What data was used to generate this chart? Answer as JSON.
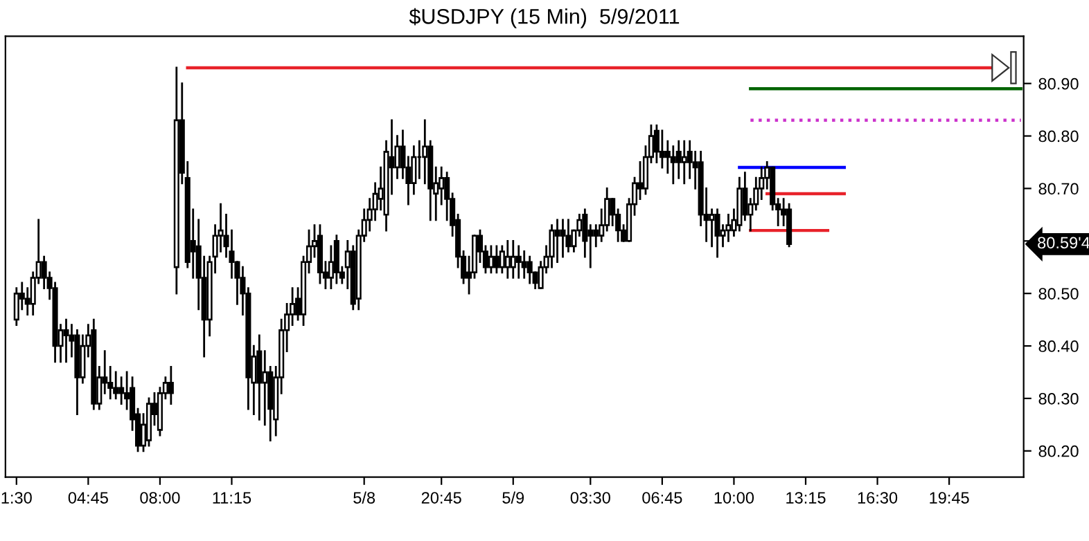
{
  "chart_data": {
    "type": "candlestick",
    "title": "$USDJPY (15 Min)  5/9/2011",
    "categories": [
      "1:30",
      null,
      null,
      null,
      null,
      null,
      null,
      null,
      null,
      null,
      null,
      null,
      null,
      "04:45",
      null,
      null,
      null,
      null,
      null,
      null,
      null,
      null,
      null,
      null,
      null,
      null,
      "08:00",
      null,
      null,
      null,
      null,
      null,
      null,
      null,
      null,
      null,
      null,
      null,
      null,
      "11:15",
      null,
      null,
      null,
      null,
      null,
      null,
      null,
      null,
      null,
      null,
      null,
      null,
      null,
      null,
      null,
      null,
      null,
      null,
      null,
      null,
      null,
      null,
      null,
      "5/8",
      null,
      null,
      null,
      null,
      null,
      null,
      null,
      null,
      null,
      null,
      null,
      null,
      null,
      "20:45",
      null,
      null,
      null,
      null,
      null,
      null,
      null,
      null,
      null,
      null,
      null,
      null,
      "5/9",
      null,
      null,
      null,
      null,
      null,
      null,
      null,
      null,
      null,
      null,
      null,
      null,
      null,
      "03:30",
      null,
      null,
      null,
      null,
      null,
      null,
      null,
      null,
      null,
      null,
      null,
      null,
      "06:45",
      null,
      null,
      null,
      null,
      null,
      null,
      null,
      null,
      null,
      null,
      null,
      null,
      "10:00",
      null,
      null,
      null,
      null,
      null,
      null,
      null,
      null,
      null,
      null,
      null,
      null,
      "13:15",
      null,
      null,
      null,
      null,
      null,
      null,
      null,
      null,
      null,
      null,
      null,
      null,
      "16:30",
      null,
      null,
      null,
      null,
      null,
      null,
      null,
      null,
      null,
      null,
      null,
      null,
      "19:45",
      null,
      null,
      null,
      null,
      null,
      null,
      null,
      null,
      null,
      null,
      null,
      null,
      null
    ],
    "ohlc": [
      [
        80.45,
        80.51,
        80.44,
        80.5
      ],
      [
        80.5,
        80.52,
        80.47,
        80.49
      ],
      [
        80.49,
        80.51,
        80.46,
        80.48
      ],
      [
        80.48,
        80.54,
        80.46,
        80.53
      ],
      [
        80.53,
        80.64,
        80.52,
        80.56
      ],
      [
        80.56,
        80.57,
        80.51,
        80.53
      ],
      [
        80.53,
        80.54,
        80.49,
        80.51
      ],
      [
        80.51,
        80.52,
        80.37,
        80.4
      ],
      [
        80.4,
        80.44,
        80.37,
        80.43
      ],
      [
        80.43,
        80.45,
        80.37,
        80.42
      ],
      [
        80.42,
        80.44,
        80.38,
        80.41
      ],
      [
        80.42,
        80.43,
        80.27,
        80.34
      ],
      [
        80.34,
        80.42,
        80.33,
        80.4
      ],
      [
        80.4,
        80.44,
        80.38,
        80.42
      ],
      [
        80.43,
        80.45,
        80.28,
        80.29
      ],
      [
        80.29,
        80.36,
        80.28,
        80.34
      ],
      [
        80.34,
        80.39,
        80.31,
        80.33
      ],
      [
        80.33,
        80.36,
        80.3,
        80.32
      ],
      [
        80.32,
        80.35,
        80.3,
        80.31
      ],
      [
        80.32,
        80.34,
        80.29,
        80.31
      ],
      [
        80.31,
        80.35,
        80.28,
        80.3
      ],
      [
        80.32,
        80.34,
        80.24,
        80.26
      ],
      [
        80.27,
        80.28,
        80.2,
        80.21
      ],
      [
        80.21,
        80.27,
        80.2,
        80.25
      ],
      [
        80.22,
        80.3,
        80.21,
        80.29
      ],
      [
        80.29,
        80.31,
        80.25,
        80.27
      ],
      [
        80.24,
        80.32,
        80.23,
        80.31
      ],
      [
        80.31,
        80.34,
        80.3,
        80.33
      ],
      [
        80.33,
        80.36,
        80.29,
        80.31
      ],
      [
        80.55,
        80.93,
        80.5,
        80.83
      ],
      [
        80.83,
        80.9,
        80.71,
        80.73
      ],
      [
        80.72,
        80.75,
        80.55,
        80.56
      ],
      [
        80.6,
        80.66,
        80.53,
        80.58
      ],
      [
        80.59,
        80.64,
        80.47,
        80.53
      ],
      [
        80.53,
        80.57,
        80.38,
        80.45
      ],
      [
        80.45,
        80.57,
        80.42,
        80.56
      ],
      [
        80.57,
        80.63,
        80.54,
        80.61
      ],
      [
        80.61,
        80.67,
        80.58,
        80.62
      ],
      [
        80.61,
        80.65,
        80.57,
        80.59
      ],
      [
        80.58,
        80.62,
        80.53,
        80.56
      ],
      [
        80.56,
        80.56,
        80.48,
        80.53
      ],
      [
        80.53,
        80.55,
        80.46,
        80.5
      ],
      [
        80.5,
        80.51,
        80.28,
        80.34
      ],
      [
        80.33,
        80.4,
        80.27,
        80.38
      ],
      [
        80.39,
        80.42,
        80.26,
        80.33
      ],
      [
        80.33,
        80.39,
        80.25,
        80.35
      ],
      [
        80.35,
        80.36,
        80.22,
        80.28
      ],
      [
        80.26,
        80.36,
        80.23,
        80.34
      ],
      [
        80.34,
        80.45,
        80.31,
        80.43
      ],
      [
        80.43,
        80.48,
        80.39,
        80.46
      ],
      [
        80.46,
        80.51,
        80.44,
        80.48
      ],
      [
        80.49,
        80.51,
        80.45,
        80.46
      ],
      [
        80.46,
        80.57,
        80.44,
        80.56
      ],
      [
        80.56,
        80.62,
        80.54,
        80.59
      ],
      [
        80.59,
        80.63,
        80.57,
        80.6
      ],
      [
        80.61,
        80.63,
        80.52,
        80.54
      ],
      [
        80.54,
        80.56,
        80.51,
        80.53
      ],
      [
        80.53,
        80.59,
        80.51,
        80.56
      ],
      [
        80.6,
        80.61,
        80.52,
        80.54
      ],
      [
        80.54,
        80.55,
        80.52,
        80.53
      ],
      [
        80.55,
        80.6,
        80.51,
        80.58
      ],
      [
        80.58,
        80.59,
        80.47,
        80.48
      ],
      [
        80.49,
        80.62,
        80.47,
        80.61
      ],
      [
        80.61,
        80.66,
        80.6,
        80.64
      ],
      [
        80.64,
        80.68,
        80.62,
        80.66
      ],
      [
        80.66,
        80.71,
        80.64,
        80.69
      ],
      [
        80.68,
        80.74,
        80.66,
        80.7
      ],
      [
        80.65,
        80.79,
        80.62,
        80.77
      ],
      [
        80.76,
        80.83,
        80.69,
        80.74
      ],
      [
        80.74,
        80.8,
        80.72,
        80.78
      ],
      [
        80.78,
        80.81,
        80.72,
        80.74
      ],
      [
        80.74,
        80.76,
        80.67,
        80.71
      ],
      [
        80.71,
        80.78,
        80.69,
        80.76
      ],
      [
        80.76,
        80.79,
        80.72,
        80.76
      ],
      [
        80.76,
        80.83,
        80.71,
        80.78
      ],
      [
        80.78,
        80.79,
        80.64,
        80.7
      ],
      [
        80.69,
        80.74,
        80.64,
        80.71
      ],
      [
        80.7,
        80.74,
        80.67,
        80.72
      ],
      [
        80.72,
        80.73,
        80.64,
        80.68
      ],
      [
        80.68,
        80.69,
        80.61,
        80.63
      ],
      [
        80.64,
        80.65,
        80.55,
        80.57
      ],
      [
        80.57,
        80.58,
        80.52,
        80.53
      ],
      [
        80.54,
        80.57,
        80.5,
        80.53
      ],
      [
        80.54,
        80.61,
        80.53,
        80.61
      ],
      [
        80.61,
        80.62,
        80.56,
        80.58
      ],
      [
        80.58,
        80.59,
        80.54,
        80.55
      ],
      [
        80.55,
        80.59,
        80.54,
        80.57
      ],
      [
        80.57,
        80.59,
        80.54,
        80.55
      ],
      [
        80.55,
        80.59,
        80.54,
        80.58
      ],
      [
        80.55,
        80.6,
        80.53,
        80.57
      ],
      [
        80.55,
        80.6,
        80.53,
        80.57
      ],
      [
        80.57,
        80.59,
        80.53,
        80.56
      ],
      [
        80.56,
        80.58,
        80.53,
        80.55
      ],
      [
        80.56,
        80.57,
        80.52,
        80.54
      ],
      [
        80.54,
        80.54,
        80.51,
        80.52
      ],
      [
        80.51,
        80.56,
        80.51,
        80.55
      ],
      [
        80.55,
        80.59,
        80.54,
        80.57
      ],
      [
        80.57,
        80.63,
        80.55,
        80.62
      ],
      [
        80.62,
        80.64,
        80.56,
        80.61
      ],
      [
        80.62,
        80.64,
        80.57,
        80.61
      ],
      [
        80.61,
        80.64,
        80.58,
        80.59
      ],
      [
        80.59,
        80.62,
        80.58,
        80.62
      ],
      [
        80.62,
        80.65,
        80.61,
        80.64
      ],
      [
        80.65,
        80.66,
        80.57,
        80.6
      ],
      [
        80.62,
        80.63,
        80.55,
        80.61
      ],
      [
        80.62,
        80.63,
        80.59,
        80.61
      ],
      [
        80.61,
        80.66,
        80.6,
        80.63
      ],
      [
        80.63,
        80.7,
        80.62,
        80.68
      ],
      [
        80.68,
        80.68,
        80.63,
        80.65
      ],
      [
        80.65,
        80.66,
        80.6,
        80.62
      ],
      [
        80.62,
        80.63,
        80.6,
        80.6
      ],
      [
        80.6,
        80.68,
        80.6,
        80.67
      ],
      [
        80.67,
        80.72,
        80.65,
        80.71
      ],
      [
        80.71,
        80.75,
        80.68,
        80.7
      ],
      [
        80.7,
        80.78,
        80.69,
        80.76
      ],
      [
        80.76,
        80.82,
        80.75,
        80.8
      ],
      [
        80.81,
        80.82,
        80.75,
        80.77
      ],
      [
        80.77,
        80.81,
        80.74,
        80.76
      ],
      [
        80.77,
        80.79,
        80.73,
        80.76
      ],
      [
        80.76,
        80.78,
        80.71,
        80.75
      ],
      [
        80.77,
        80.79,
        80.72,
        80.75
      ],
      [
        80.75,
        80.79,
        80.71,
        80.76
      ],
      [
        80.77,
        80.79,
        80.72,
        80.75
      ],
      [
        80.75,
        80.77,
        80.7,
        80.74
      ],
      [
        80.75,
        80.77,
        80.63,
        80.65
      ],
      [
        80.65,
        80.7,
        80.6,
        80.64
      ],
      [
        80.64,
        80.66,
        80.59,
        80.65
      ],
      [
        80.65,
        80.66,
        80.57,
        80.61
      ],
      [
        80.61,
        80.63,
        80.59,
        80.62
      ],
      [
        80.62,
        80.65,
        80.6,
        80.63
      ],
      [
        80.62,
        80.66,
        80.61,
        80.64
      ],
      [
        80.63,
        80.72,
        80.62,
        80.7
      ],
      [
        80.7,
        80.73,
        80.64,
        80.65
      ],
      [
        80.65,
        80.68,
        80.62,
        80.67
      ],
      [
        80.67,
        80.72,
        80.66,
        80.7
      ],
      [
        80.7,
        80.74,
        80.68,
        80.72
      ],
      [
        80.72,
        80.75,
        80.7,
        80.74
      ],
      [
        80.74,
        80.74,
        80.66,
        80.67
      ],
      [
        80.67,
        80.68,
        80.63,
        80.66
      ],
      [
        80.66,
        80.68,
        80.63,
        80.65
      ],
      [
        80.66,
        80.67,
        80.59,
        80.594
      ],
      null,
      null,
      null,
      null,
      null,
      null,
      null,
      null,
      null,
      null,
      null,
      null,
      null,
      null,
      null,
      null,
      null,
      null,
      null,
      null,
      null,
      null,
      null,
      null,
      null,
      null,
      null,
      null,
      null,
      null,
      null,
      null,
      null,
      null,
      null,
      null,
      null,
      null,
      null,
      null,
      null,
      null
    ],
    "series": [
      {
        "type": "line",
        "color": "#e8222a",
        "line_style": "solid",
        "values": [
          null,
          null,
          null,
          null,
          null,
          null,
          null,
          null,
          null,
          null,
          null,
          null,
          null,
          null,
          null,
          null,
          null,
          null,
          null,
          null,
          null,
          null,
          null,
          null,
          null,
          null,
          null,
          null,
          null,
          null,
          null,
          80.93,
          80.93,
          80.93,
          80.93,
          80.93,
          80.93,
          80.93,
          80.93,
          80.93,
          80.93,
          80.93,
          80.93,
          80.93,
          80.93,
          80.93,
          80.93,
          80.93,
          80.93,
          80.93,
          80.93,
          80.93,
          80.93,
          80.93,
          80.93,
          80.93,
          80.93,
          80.93,
          80.93,
          80.93,
          80.93,
          80.93,
          80.93,
          80.93,
          80.93,
          80.93,
          80.93,
          80.93,
          80.93,
          80.93,
          80.93,
          80.93,
          80.93,
          80.93,
          80.93,
          80.93,
          80.93,
          80.93,
          80.93,
          80.93,
          80.93,
          80.93,
          80.93,
          80.93,
          80.93,
          80.93,
          80.93,
          80.93,
          80.93,
          80.93,
          80.93,
          80.93,
          80.93,
          80.93,
          80.93,
          80.93,
          80.93,
          80.93,
          80.93,
          80.93,
          80.93,
          80.93,
          80.93,
          80.93,
          80.93,
          80.93,
          80.93,
          80.93,
          80.93,
          80.93,
          80.93,
          80.93,
          80.93,
          80.93,
          80.93,
          80.93,
          80.93,
          80.93,
          80.93,
          80.93,
          80.93,
          80.93,
          80.93,
          80.93,
          80.93,
          80.93,
          80.93,
          80.93,
          80.93,
          80.93,
          80.93,
          80.93,
          80.93,
          80.93,
          80.93,
          80.93,
          80.93,
          80.93,
          80.93,
          80.93,
          80.93,
          80.93,
          80.93,
          80.93,
          80.93,
          80.93,
          80.93,
          80.93,
          80.93,
          80.93,
          80.93,
          80.93,
          80.93,
          80.93,
          80.93,
          80.93,
          80.93,
          80.93,
          80.93,
          80.93,
          80.93,
          80.93,
          80.93,
          80.93,
          80.93,
          80.93,
          80.93,
          80.93,
          80.93,
          80.93,
          80.93,
          80.93,
          80.93,
          80.93,
          80.93,
          80.93,
          80.93,
          80.93,
          80.93,
          80.93,
          null,
          null,
          null
        ]
      },
      {
        "type": "line",
        "color": "#006400",
        "line_style": "solid",
        "values": [
          null,
          null,
          null,
          null,
          null,
          null,
          null,
          null,
          null,
          null,
          null,
          null,
          null,
          null,
          null,
          null,
          null,
          null,
          null,
          null,
          null,
          null,
          null,
          null,
          null,
          null,
          null,
          null,
          null,
          null,
          null,
          null,
          null,
          null,
          null,
          null,
          null,
          null,
          null,
          null,
          null,
          null,
          null,
          null,
          null,
          null,
          null,
          null,
          null,
          null,
          null,
          null,
          null,
          null,
          null,
          null,
          null,
          null,
          null,
          null,
          null,
          null,
          null,
          null,
          null,
          null,
          null,
          null,
          null,
          null,
          null,
          null,
          null,
          null,
          null,
          null,
          null,
          null,
          null,
          null,
          null,
          null,
          null,
          null,
          null,
          null,
          null,
          null,
          null,
          null,
          null,
          null,
          null,
          null,
          null,
          null,
          null,
          null,
          null,
          null,
          null,
          null,
          null,
          null,
          null,
          null,
          null,
          null,
          null,
          null,
          null,
          null,
          null,
          null,
          null,
          null,
          null,
          null,
          null,
          null,
          null,
          null,
          null,
          null,
          null,
          null,
          null,
          null,
          null,
          null,
          null,
          null,
          null,
          80.89,
          80.89,
          80.89,
          80.89,
          80.89,
          80.89,
          80.89,
          80.89,
          80.89,
          80.89,
          80.89,
          80.89,
          80.89,
          80.89,
          80.89,
          80.89,
          80.89,
          80.89,
          80.89,
          80.89,
          80.89,
          80.89,
          80.89,
          80.89,
          80.89,
          80.89,
          80.89,
          80.89,
          80.89,
          80.89,
          80.89,
          80.89,
          80.89,
          80.89,
          80.89,
          80.89,
          80.89,
          80.89,
          80.89,
          80.89,
          80.89,
          80.89,
          80.89,
          80.89,
          80.89,
          80.89,
          80.89,
          80.89,
          80.89,
          80.89
        ]
      },
      {
        "type": "line",
        "color": "#cc33cc",
        "line_style": "dotted",
        "values": [
          null,
          null,
          null,
          null,
          null,
          null,
          null,
          null,
          null,
          null,
          null,
          null,
          null,
          null,
          null,
          null,
          null,
          null,
          null,
          null,
          null,
          null,
          null,
          null,
          null,
          null,
          null,
          null,
          null,
          null,
          null,
          null,
          null,
          null,
          null,
          null,
          null,
          null,
          null,
          null,
          null,
          null,
          null,
          null,
          null,
          null,
          null,
          null,
          null,
          null,
          null,
          null,
          null,
          null,
          null,
          null,
          null,
          null,
          null,
          null,
          null,
          null,
          null,
          null,
          null,
          null,
          null,
          null,
          null,
          null,
          null,
          null,
          null,
          null,
          null,
          null,
          null,
          null,
          null,
          null,
          null,
          null,
          null,
          null,
          null,
          null,
          null,
          null,
          null,
          null,
          null,
          null,
          null,
          null,
          null,
          null,
          null,
          null,
          null,
          null,
          null,
          null,
          null,
          null,
          null,
          null,
          null,
          null,
          null,
          null,
          null,
          null,
          null,
          null,
          null,
          null,
          null,
          null,
          null,
          null,
          null,
          null,
          null,
          null,
          null,
          null,
          null,
          null,
          null,
          null,
          null,
          null,
          null,
          80.83,
          80.83,
          80.83,
          80.83,
          80.83,
          80.83,
          80.83,
          80.83,
          80.83,
          80.83,
          80.83,
          80.83,
          80.83,
          80.83,
          80.83,
          80.83,
          80.83,
          80.83,
          80.83,
          80.83,
          80.83,
          80.83,
          80.83,
          80.83,
          80.83,
          80.83,
          80.83,
          80.83,
          80.83,
          80.83,
          80.83,
          80.83,
          80.83,
          80.83,
          80.83,
          80.83,
          80.83,
          80.83,
          80.83,
          80.83,
          80.83,
          80.83,
          80.83,
          80.83,
          80.83,
          80.83,
          80.83,
          80.83,
          80.83,
          80.83
        ]
      },
      {
        "type": "line",
        "color": "#0000ff",
        "line_style": "solid",
        "values": [
          null,
          null,
          null,
          null,
          null,
          null,
          null,
          null,
          null,
          null,
          null,
          null,
          null,
          null,
          null,
          null,
          null,
          null,
          null,
          null,
          null,
          null,
          null,
          null,
          null,
          null,
          null,
          null,
          null,
          null,
          null,
          null,
          null,
          null,
          null,
          null,
          null,
          null,
          null,
          null,
          null,
          null,
          null,
          null,
          null,
          null,
          null,
          null,
          null,
          null,
          null,
          null,
          null,
          null,
          null,
          null,
          null,
          null,
          null,
          null,
          null,
          null,
          null,
          null,
          null,
          null,
          null,
          null,
          null,
          null,
          null,
          null,
          null,
          null,
          null,
          null,
          null,
          null,
          null,
          null,
          null,
          null,
          null,
          null,
          null,
          null,
          null,
          null,
          null,
          null,
          null,
          null,
          null,
          null,
          null,
          null,
          null,
          null,
          null,
          null,
          null,
          null,
          null,
          null,
          null,
          null,
          null,
          null,
          null,
          null,
          null,
          null,
          null,
          null,
          null,
          null,
          null,
          null,
          null,
          null,
          null,
          null,
          null,
          null,
          null,
          null,
          null,
          null,
          null,
          null,
          null,
          80.74,
          80.74,
          80.74,
          80.74,
          80.74,
          80.74,
          80.74,
          80.74,
          80.74,
          80.74,
          80.74,
          80.74,
          80.74,
          80.74,
          80.74,
          80.74,
          80.74,
          80.74,
          80.74,
          80.74,
          null,
          null,
          null,
          null,
          null,
          null,
          null,
          null,
          null,
          null,
          null,
          null,
          null,
          null,
          null,
          null,
          null,
          null,
          null,
          null,
          null,
          null,
          null,
          null,
          null,
          null,
          null,
          null,
          null,
          null,
          null,
          null
        ]
      },
      {
        "type": "line",
        "color": "#e8222a",
        "line_style": "solid",
        "values": [
          null,
          null,
          null,
          null,
          null,
          null,
          null,
          null,
          null,
          null,
          null,
          null,
          null,
          null,
          null,
          null,
          null,
          null,
          null,
          null,
          null,
          null,
          null,
          null,
          null,
          null,
          null,
          null,
          null,
          null,
          null,
          null,
          null,
          null,
          null,
          null,
          null,
          null,
          null,
          null,
          null,
          null,
          null,
          null,
          null,
          null,
          null,
          null,
          null,
          null,
          null,
          null,
          null,
          null,
          null,
          null,
          null,
          null,
          null,
          null,
          null,
          null,
          null,
          null,
          null,
          null,
          null,
          null,
          null,
          null,
          null,
          null,
          null,
          null,
          null,
          null,
          null,
          null,
          null,
          null,
          null,
          null,
          null,
          null,
          null,
          null,
          null,
          null,
          null,
          null,
          null,
          null,
          null,
          null,
          null,
          null,
          null,
          null,
          null,
          null,
          null,
          null,
          null,
          null,
          null,
          null,
          null,
          null,
          null,
          null,
          null,
          null,
          null,
          null,
          null,
          null,
          null,
          null,
          null,
          null,
          null,
          null,
          null,
          null,
          null,
          null,
          null,
          null,
          null,
          null,
          null,
          null,
          null,
          null,
          null,
          null,
          80.69,
          80.69,
          80.69,
          80.69,
          80.69,
          80.69,
          80.69,
          80.69,
          80.69,
          80.69,
          80.69,
          80.69,
          80.69,
          80.69,
          80.69,
          null,
          null,
          null,
          null,
          null,
          null,
          null,
          null,
          null,
          null,
          null,
          null,
          null,
          null,
          null,
          null,
          null,
          null,
          null,
          null,
          null,
          null,
          null,
          null,
          null,
          null,
          null,
          null,
          null,
          null,
          null,
          null
        ]
      },
      {
        "type": "line",
        "color": "#e8222a",
        "line_style": "solid",
        "values": [
          null,
          null,
          null,
          null,
          null,
          null,
          null,
          null,
          null,
          null,
          null,
          null,
          null,
          null,
          null,
          null,
          null,
          null,
          null,
          null,
          null,
          null,
          null,
          null,
          null,
          null,
          null,
          null,
          null,
          null,
          null,
          null,
          null,
          null,
          null,
          null,
          null,
          null,
          null,
          null,
          null,
          null,
          null,
          null,
          null,
          null,
          null,
          null,
          null,
          null,
          null,
          null,
          null,
          null,
          null,
          null,
          null,
          null,
          null,
          null,
          null,
          null,
          null,
          null,
          null,
          null,
          null,
          null,
          null,
          null,
          null,
          null,
          null,
          null,
          null,
          null,
          null,
          null,
          null,
          null,
          null,
          null,
          null,
          null,
          null,
          null,
          null,
          null,
          null,
          null,
          null,
          null,
          null,
          null,
          null,
          null,
          null,
          null,
          null,
          null,
          null,
          null,
          null,
          null,
          null,
          null,
          null,
          null,
          null,
          null,
          null,
          null,
          null,
          null,
          null,
          null,
          null,
          null,
          null,
          null,
          null,
          null,
          null,
          null,
          null,
          null,
          null,
          null,
          null,
          null,
          null,
          null,
          null,
          80.62,
          80.62,
          80.62,
          80.62,
          80.62,
          80.62,
          80.62,
          80.62,
          80.62,
          80.62,
          80.62,
          80.62,
          80.62,
          80.62,
          80.62,
          null,
          null,
          null,
          null,
          null,
          null,
          null,
          null,
          null,
          null,
          null,
          null,
          null,
          null,
          null,
          null,
          null,
          null,
          null,
          null,
          null,
          null,
          null,
          null,
          null,
          null,
          null,
          null,
          null,
          null,
          null,
          null,
          null,
          null,
          null
        ]
      }
    ],
    "ylim": [
      80.15,
      80.99
    ],
    "yticks": [
      {
        "value": 80.2,
        "label": "80.20"
      },
      {
        "value": 80.3,
        "label": "80.30"
      },
      {
        "value": 80.4,
        "label": "80.40"
      },
      {
        "value": 80.5,
        "label": "80.50"
      },
      {
        "value": 80.6,
        "label": null
      },
      {
        "value": 80.7,
        "label": "80.70"
      },
      {
        "value": 80.8,
        "label": "80.80"
      },
      {
        "value": 80.9,
        "label": "80.90"
      }
    ],
    "annotations": [
      "80.59'4"
    ],
    "grid": false,
    "legend": false,
    "marker": "none"
  }
}
